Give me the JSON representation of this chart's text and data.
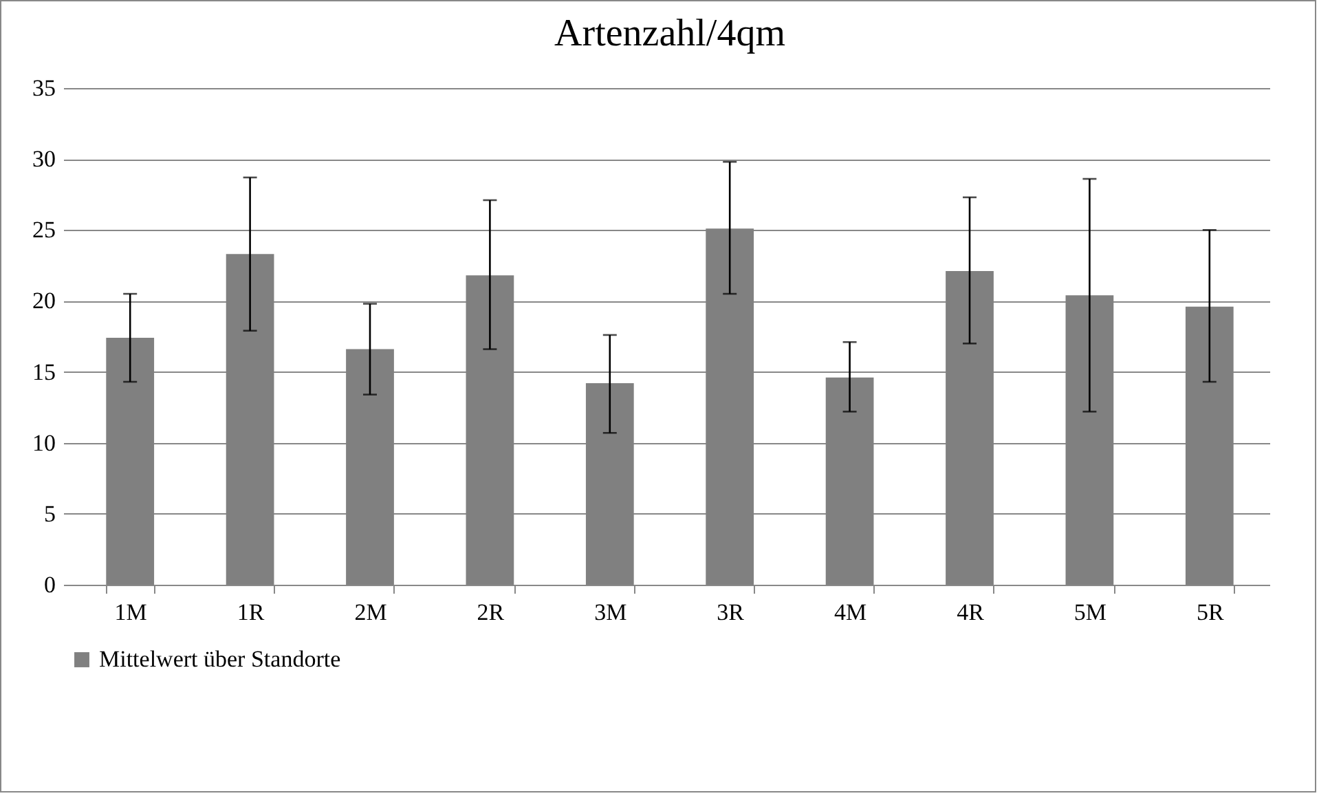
{
  "chart_data": {
    "type": "bar",
    "title": "Artenzahl/4qm",
    "categories": [
      "1M",
      "1R",
      "2M",
      "2R",
      "3M",
      "3R",
      "4M",
      "4R",
      "5M",
      "5R"
    ],
    "series": [
      {
        "name": "Mittelwert über Standorte",
        "color": "#808080",
        "values": [
          17.4,
          23.3,
          16.6,
          21.8,
          14.2,
          25.1,
          14.6,
          22.1,
          20.4,
          19.6
        ],
        "errors": [
          [
            14.3,
            20.5
          ],
          [
            17.9,
            28.7
          ],
          [
            13.4,
            19.8
          ],
          [
            16.6,
            27.1
          ],
          [
            10.7,
            17.6
          ],
          [
            20.5,
            29.8
          ],
          [
            12.2,
            17.1
          ],
          [
            17.0,
            27.3
          ],
          [
            12.2,
            28.6
          ],
          [
            14.3,
            25.0
          ]
        ]
      }
    ],
    "ylim": [
      0,
      35
    ],
    "yticks": [
      0,
      5,
      10,
      15,
      20,
      25,
      30,
      35
    ],
    "grid": "y",
    "legend": "bottom"
  }
}
